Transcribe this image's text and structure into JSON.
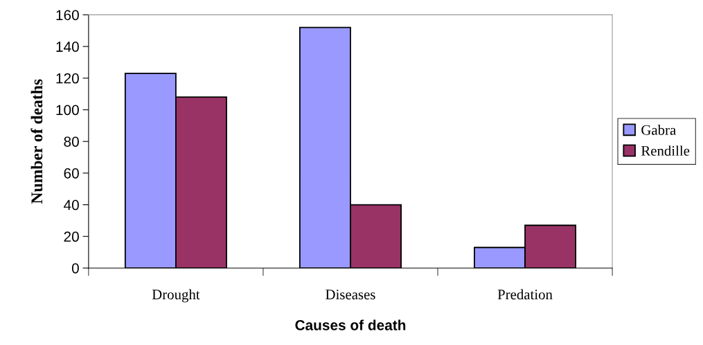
{
  "chart_data": {
    "type": "bar",
    "xlabel": "Causes of death",
    "ylabel": "Number of deaths",
    "categories": [
      "Drought",
      "Diseases",
      "Predation"
    ],
    "series": [
      {
        "name": "Gabra",
        "color": "#9999ff",
        "values": [
          123,
          152,
          13
        ]
      },
      {
        "name": "Rendille",
        "color": "#993366",
        "values": [
          108,
          40,
          27
        ]
      }
    ],
    "ylim": [
      0,
      160
    ],
    "yticks": [
      0,
      20,
      40,
      60,
      80,
      100,
      120,
      140,
      160
    ],
    "grid": false,
    "legend": "right"
  }
}
